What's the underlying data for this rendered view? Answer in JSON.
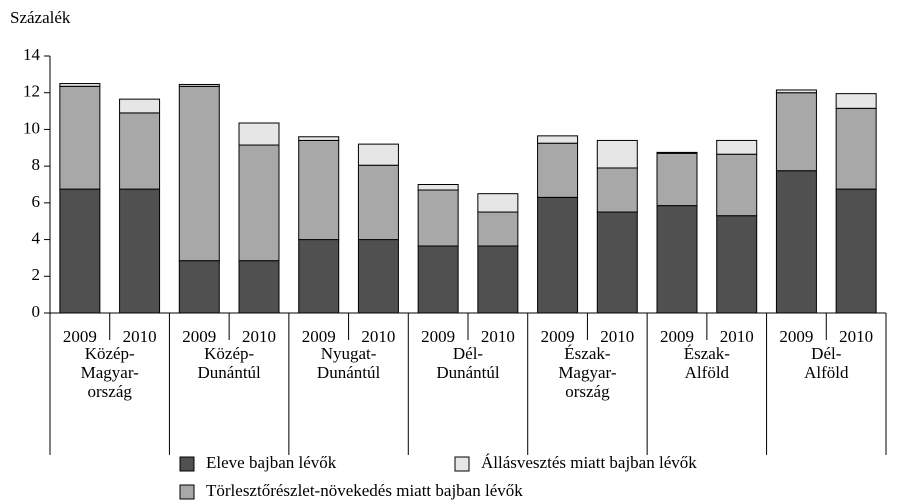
{
  "chart_data": {
    "type": "stacked_bar",
    "y_axis_label": "Százalék",
    "categories": [
      "2009",
      "2010",
      "2009",
      "2010",
      "2009",
      "2010",
      "2009",
      "2010",
      "2009",
      "2010",
      "2009",
      "2010",
      "2009",
      "2010"
    ],
    "groups": [
      {
        "lines": [
          "Közép-",
          "Magyar-",
          "ország"
        ]
      },
      {
        "lines": [
          "Közép-",
          "Dunántúl"
        ]
      },
      {
        "lines": [
          "Nyugat-",
          "Dunántúl"
        ]
      },
      {
        "lines": [
          "Dél-",
          "Dunántúl"
        ]
      },
      {
        "lines": [
          "Észak-",
          "Magyar-",
          "ország"
        ]
      },
      {
        "lines": [
          "Észak-",
          "Alföld"
        ]
      },
      {
        "lines": [
          "Dél-",
          "Alföld"
        ]
      }
    ],
    "series": [
      {
        "name": "Eleve bajban lévők",
        "color": "#505050",
        "values": [
          6.75,
          6.75,
          2.85,
          2.85,
          4.0,
          4.0,
          3.65,
          3.65,
          6.3,
          5.5,
          5.85,
          5.3,
          7.75,
          6.75
        ]
      },
      {
        "name": "Törlesztőrészlet-növekedés miatt bajban lévők",
        "color": "#a8a8a8",
        "values": [
          5.6,
          4.15,
          9.5,
          6.3,
          5.4,
          4.05,
          3.05,
          1.85,
          2.95,
          2.4,
          2.85,
          3.35,
          4.25,
          4.4
        ]
      },
      {
        "name": "Állásvesztés miatt bajban lévők",
        "color": "#e6e6e6",
        "values": [
          0.15,
          0.75,
          0.1,
          1.2,
          0.2,
          1.15,
          0.3,
          1.0,
          0.4,
          1.5,
          0.05,
          0.75,
          0.15,
          0.8
        ]
      }
    ],
    "ylim": [
      0,
      14
    ],
    "yticks": [
      0,
      2,
      4,
      6,
      8,
      10,
      12,
      14
    ]
  }
}
